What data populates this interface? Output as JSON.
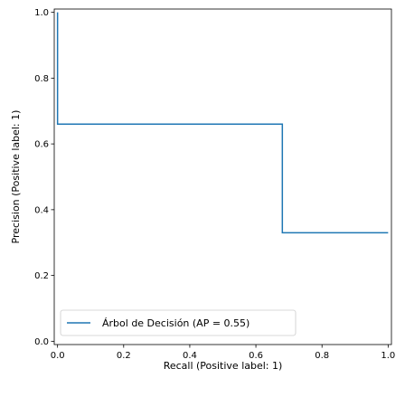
{
  "chart_data": {
    "type": "line",
    "title": "",
    "xlabel": "Recall (Positive label: 1)",
    "ylabel": "Precision (Positive label: 1)",
    "xlim": [
      -0.01,
      1.01
    ],
    "ylim": [
      -0.01,
      1.01
    ],
    "xticks": [
      0.0,
      0.2,
      0.4,
      0.6,
      0.8,
      1.0
    ],
    "xtick_labels": [
      "0.0",
      "0.2",
      "0.4",
      "0.6",
      "0.8",
      "1.0"
    ],
    "yticks": [
      0.0,
      0.2,
      0.4,
      0.6,
      0.8,
      1.0
    ],
    "ytick_labels": [
      "0.0",
      "0.2",
      "0.4",
      "0.6",
      "0.8",
      "1.0"
    ],
    "grid": false,
    "legend_position": "lower-left",
    "step": "post",
    "series": [
      {
        "name": "Árbol de Decisión (AP = 0.55)",
        "color": "#1f77b4",
        "x": [
          1.0,
          1.0,
          0.68,
          0.68,
          0.0,
          0.0
        ],
        "y": [
          0.33,
          0.33,
          0.33,
          0.66,
          0.66,
          1.0
        ]
      }
    ]
  }
}
